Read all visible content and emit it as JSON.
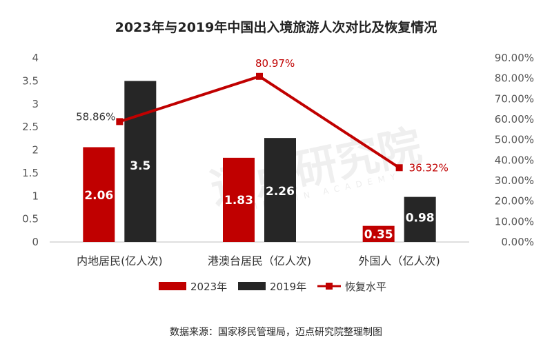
{
  "chart_data": {
    "type": "bar",
    "title": "2023年与2019年中国出入境旅游人次对比及恢复情况",
    "categories": [
      "内地居民(亿人次)",
      "港澳台居民（亿人次)",
      "外国人（亿人次)"
    ],
    "series": [
      {
        "name": "2023年",
        "type": "bar",
        "axis": "left",
        "color": "#c00000",
        "values": [
          2.06,
          1.83,
          0.35
        ],
        "labels": [
          "2.06",
          "1.83",
          "0.35"
        ]
      },
      {
        "name": "2019年",
        "type": "bar",
        "axis": "left",
        "color": "#262626",
        "values": [
          3.5,
          2.26,
          0.98
        ],
        "labels": [
          "3.5",
          "2.26",
          "0.98"
        ]
      },
      {
        "name": "恢复水平",
        "type": "line",
        "axis": "right",
        "color": "#c00000",
        "values": [
          58.86,
          80.97,
          36.32
        ],
        "labels": [
          "58.86%",
          "80.97%",
          "36.32%"
        ]
      }
    ],
    "y_left": {
      "ylim": [
        0,
        4
      ],
      "ticks": [
        0,
        0.5,
        1,
        1.5,
        2,
        2.5,
        3,
        3.5,
        4
      ],
      "tick_labels": [
        "0",
        "0.5",
        "1",
        "1.5",
        "2",
        "2.5",
        "3",
        "3.5",
        "4"
      ]
    },
    "y_right": {
      "ylim": [
        0,
        90
      ],
      "ticks": [
        0,
        10,
        20,
        30,
        40,
        50,
        60,
        70,
        80,
        90
      ],
      "tick_labels": [
        "0.00%",
        "10.00%",
        "20.00%",
        "30.00%",
        "40.00%",
        "50.00%",
        "60.00%",
        "70.00%",
        "80.00%",
        "90.00%"
      ]
    },
    "legend_position": "bottom",
    "grid": false
  },
  "source": "数据来源：国家移民管理局，迈点研究院整理制图",
  "watermark": {
    "cn": "迈点研究院",
    "en": "MEADIN ACADEMY"
  }
}
